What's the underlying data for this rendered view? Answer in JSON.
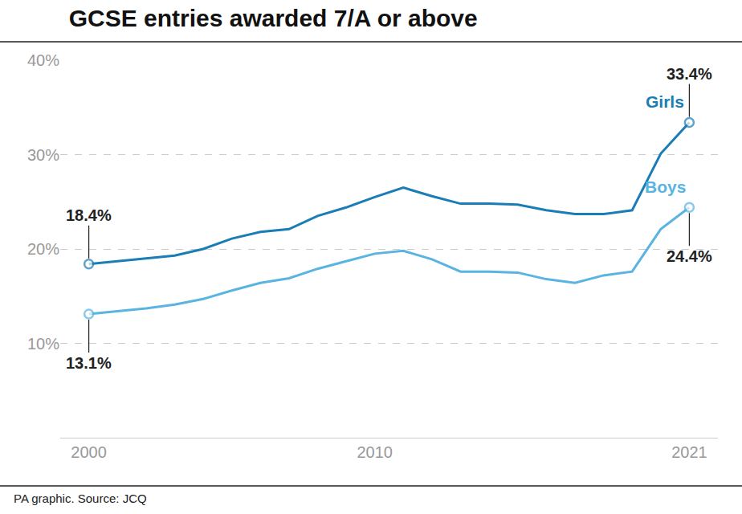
{
  "chart_data": {
    "type": "line",
    "title": "GCSE entries awarded 7/A or above",
    "source": "PA graphic. Source: JCQ",
    "x": [
      2000,
      2001,
      2002,
      2003,
      2004,
      2005,
      2006,
      2007,
      2008,
      2009,
      2010,
      2011,
      2012,
      2013,
      2014,
      2015,
      2016,
      2017,
      2018,
      2019,
      2020,
      2021
    ],
    "series": [
      {
        "name": "Girls",
        "color": "#1a7db5",
        "marker": "circle",
        "values": [
          18.4,
          18.7,
          19.0,
          19.3,
          20.0,
          21.1,
          21.8,
          22.1,
          23.5,
          24.4,
          25.5,
          26.5,
          25.6,
          24.8,
          24.8,
          24.7,
          24.1,
          23.7,
          23.7,
          24.1,
          30.1,
          33.4
        ],
        "value_labels": [
          "18.4%",
          null,
          null,
          null,
          null,
          null,
          null,
          null,
          null,
          null,
          null,
          null,
          null,
          null,
          null,
          null,
          null,
          null,
          null,
          null,
          null,
          "33.4%"
        ]
      },
      {
        "name": "Boys",
        "color": "#5ab4e1",
        "marker": "circle",
        "values": [
          13.1,
          13.4,
          13.7,
          14.1,
          14.7,
          15.6,
          16.4,
          16.9,
          17.9,
          18.7,
          19.5,
          19.8,
          18.9,
          17.6,
          17.6,
          17.5,
          16.8,
          16.4,
          17.2,
          17.6,
          22.1,
          24.4
        ],
        "value_labels": [
          "13.1%",
          null,
          null,
          null,
          null,
          null,
          null,
          null,
          null,
          null,
          null,
          null,
          null,
          null,
          null,
          null,
          null,
          null,
          null,
          null,
          null,
          "24.4%"
        ]
      }
    ],
    "xlim": [
      1999,
      2022
    ],
    "xticks": [
      2000,
      2010,
      2021
    ],
    "ylim": [
      0,
      40
    ],
    "yticks": [
      {
        "value": 10,
        "label": "10%"
      },
      {
        "value": 20,
        "label": "20%"
      },
      {
        "value": 30,
        "label": "30%"
      },
      {
        "value": 40,
        "label": "40%"
      }
    ],
    "grid": true,
    "data_labels": true
  }
}
